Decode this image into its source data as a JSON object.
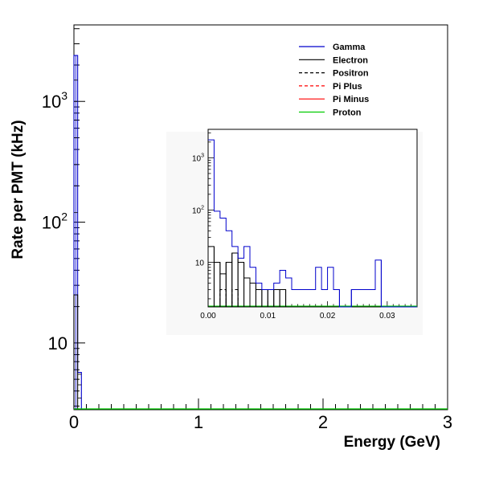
{
  "colors": {
    "gamma": "#0000cc",
    "electron": "#000000",
    "positron": "#000000",
    "pi_plus": "#ff0000",
    "pi_minus": "#ff0000",
    "proton": "#00cc00"
  },
  "chart_data": [
    {
      "type": "line",
      "subtype": "step-histogram",
      "title": "",
      "xlabel": "Energy (GeV)",
      "ylabel": "Rate per PMT (kHz)",
      "xlim": [
        0,
        3
      ],
      "ylim": [
        2.8,
        4300
      ],
      "yscale": "log",
      "x_ticks": [
        {
          "value": 0,
          "label": "0"
        },
        {
          "value": 1,
          "label": "1"
        },
        {
          "value": 2,
          "label": "2"
        },
        {
          "value": 3,
          "label": "3"
        }
      ],
      "y_ticks": [
        {
          "value": 10,
          "base": "10",
          "exp": ""
        },
        {
          "value": 100,
          "base": "10",
          "exp": "2"
        },
        {
          "value": 1000,
          "base": "10",
          "exp": "3"
        }
      ],
      "legend": {
        "position": "top-right",
        "entries": [
          {
            "name": "Gamma",
            "color": "#0000cc",
            "style": "solid"
          },
          {
            "name": "Electron",
            "color": "#000000",
            "style": "solid"
          },
          {
            "name": "Positron",
            "color": "#000000",
            "style": "dashed"
          },
          {
            "name": "Pi Plus",
            "color": "#ff0000",
            "style": "dashed"
          },
          {
            "name": "Pi Minus",
            "color": "#ff0000",
            "style": "solid"
          },
          {
            "name": "Proton",
            "color": "#00cc00",
            "style": "solid"
          }
        ]
      },
      "series": [
        {
          "name": "Gamma",
          "color": "#0000cc",
          "style": "solid",
          "bins": [
            [
              0,
              0.03,
              2400
            ],
            [
              0.03,
              0.06,
              5.7
            ]
          ]
        },
        {
          "name": "Electron",
          "color": "#000000",
          "style": "solid",
          "bins": [
            [
              0,
              0.03,
              25
            ]
          ]
        },
        {
          "name": "Positron",
          "color": "#000000",
          "style": "dashed",
          "bins": []
        },
        {
          "name": "Pi Plus",
          "color": "#ff0000",
          "style": "dashed",
          "bins": []
        },
        {
          "name": "Pi Minus",
          "color": "#ff0000",
          "style": "solid",
          "bins": []
        },
        {
          "name": "Proton",
          "color": "#00cc00",
          "style": "solid",
          "bins": []
        }
      ]
    },
    {
      "type": "line",
      "subtype": "step-histogram-inset",
      "xlim": [
        0,
        0.035
      ],
      "ylim": [
        1.4,
        3500
      ],
      "yscale": "log",
      "bin_width": 0.001,
      "x_ticks": [
        {
          "value": 0,
          "label": "0.00"
        },
        {
          "value": 0.01,
          "label": "0.01"
        },
        {
          "value": 0.02,
          "label": "0.02"
        },
        {
          "value": 0.03,
          "label": "0.03"
        }
      ],
      "y_ticks": [
        {
          "value": 10,
          "base": "10",
          "exp": ""
        },
        {
          "value": 100,
          "base": "10",
          "exp": "2"
        },
        {
          "value": 1000,
          "base": "10",
          "exp": "3"
        }
      ],
      "series": [
        {
          "name": "Gamma",
          "color": "#0000cc",
          "style": "solid",
          "values": [
            2200,
            95,
            70,
            40,
            20,
            12,
            20,
            8,
            4,
            3,
            3,
            4,
            7,
            5,
            3,
            3,
            3,
            3,
            8,
            3,
            8,
            3,
            1.4,
            1.4,
            3,
            3,
            3,
            3,
            11,
            1.4,
            1.4,
            1.4,
            1.4,
            1.4,
            1.4
          ]
        },
        {
          "name": "Electron",
          "color": "#000000",
          "style": "solid",
          "values": [
            20,
            10,
            6,
            10,
            15,
            10,
            5,
            4,
            3,
            3,
            3,
            3,
            3,
            1.4,
            1.4,
            1.4,
            1.4,
            1.4,
            1.4,
            1.4,
            1.4,
            1.4,
            1.4,
            1.4,
            1.4,
            1.4,
            1.4,
            1.4,
            1.4,
            1.4,
            1.4,
            1.4,
            1.4,
            1.4,
            1.4
          ]
        },
        {
          "name": "Positron",
          "color": "#000000",
          "style": "dashed",
          "values": [
            1.4,
            1.4,
            3,
            1.4,
            3,
            1.4,
            1.4,
            1.4,
            1.4,
            1.4,
            1.4,
            1.4,
            1.4,
            1.4,
            1.4,
            1.4,
            1.4,
            1.4,
            1.4,
            1.4,
            1.4,
            1.4,
            1.4,
            1.4,
            1.4,
            1.4,
            1.4,
            1.4,
            1.4,
            1.4,
            1.4,
            1.4,
            1.4,
            1.4,
            1.4
          ]
        },
        {
          "name": "Proton",
          "color": "#00cc00",
          "style": "solid",
          "values": []
        }
      ]
    }
  ]
}
